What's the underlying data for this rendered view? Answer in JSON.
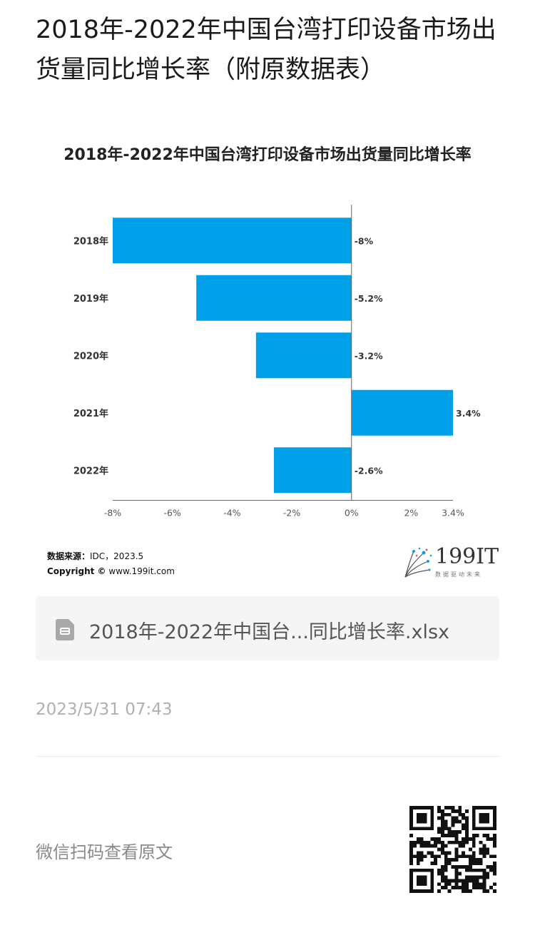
{
  "article": {
    "title": "2018年-2022年中国台湾打印设备市场出货量同比增长率（附原数据表）"
  },
  "chart_data": {
    "type": "bar",
    "orientation": "horizontal",
    "title": "2018年-2022年中国台湾打印设备市场出货量同比增长率",
    "categories": [
      "2018年",
      "2019年",
      "2020年",
      "2021年",
      "2022年"
    ],
    "values": [
      -8,
      -5.2,
      -3.2,
      3.4,
      -2.6
    ],
    "data_labels": [
      "-8%",
      "-5.2%",
      "-3.2%",
      "3.4%",
      "-2.6%"
    ],
    "x_ticks": [
      -8,
      -6,
      -4,
      -2,
      0,
      2,
      3.4
    ],
    "x_tick_labels": [
      "-8%",
      "-6%",
      "-4%",
      "-2%",
      "0%",
      "2%",
      "3.4%"
    ],
    "xlim": [
      -8,
      3.4
    ],
    "bar_color": "#00a0e9",
    "grid": false,
    "legend": "none"
  },
  "source": {
    "label": "数据来源：",
    "value": "IDC，2023.5",
    "copyright_label": "Copyright ©",
    "copyright_value": "www.199it.com"
  },
  "logo": {
    "text": "199IT",
    "tagline": "数据驱动未来"
  },
  "attachment": {
    "file_name": "2018年-2022年中国台...同比增长率.xlsx",
    "icon": "spreadsheet-file-icon"
  },
  "meta": {
    "timestamp": "2023/5/31 07:43"
  },
  "footer": {
    "qr_label": "微信扫码查看原文",
    "qr_icon": "qr-code-icon"
  }
}
